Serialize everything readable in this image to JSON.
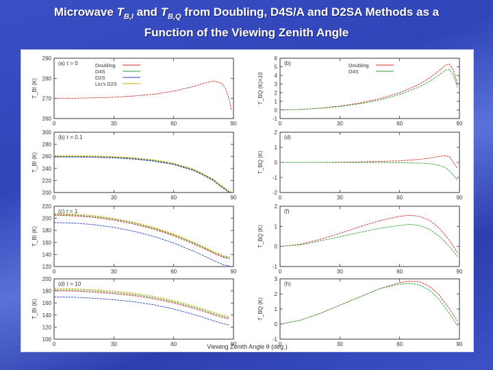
{
  "title": {
    "prefix": "Microwave ",
    "t1": "T",
    "sub1": "B,I",
    "mid": " and ",
    "t2": "T",
    "sub2": "B,Q",
    "suffix": " from Doubling, D4S/A and D2SA Methods as a",
    "line2": "Function of the Viewing Zenith Angle"
  },
  "colors": {
    "Doubling": "#d62728",
    "D4S": "#2ca02c",
    "D2S": "#1f3fbf",
    "Liu's D2S": "#e0a000"
  },
  "xlabel": "Viewing Zenith Angle θ (deg.)",
  "chart_data": [
    {
      "type": "line",
      "panel": "a",
      "panel_label": "(a) τ = 0",
      "ylabel": "T_BI (K)",
      "xlim": [
        0,
        90
      ],
      "ylim": [
        260,
        290
      ],
      "xticks": [
        0,
        30,
        60,
        90
      ],
      "yticks": [
        260,
        270,
        280,
        290
      ],
      "x": [
        0,
        10,
        20,
        30,
        40,
        50,
        60,
        70,
        75,
        80,
        84,
        86,
        88,
        89
      ],
      "legend": [
        "Doubling",
        "D4S",
        "D2S",
        "Liu's D2S"
      ],
      "series": [
        {
          "name": "Doubling",
          "values": [
            270.0,
            270.1,
            270.3,
            270.6,
            271.2,
            272.1,
            273.6,
            276.0,
            277.5,
            278.6,
            277.6,
            275.0,
            269.0,
            264.0
          ]
        }
      ]
    },
    {
      "type": "line",
      "panel": "b",
      "panel_label": "(b)",
      "ylabel": "T_BQ (K)×10",
      "xlim": [
        0,
        90
      ],
      "ylim": [
        -1,
        6
      ],
      "xticks": [
        0,
        30,
        60,
        90
      ],
      "yticks": [
        -1,
        0,
        1,
        2,
        3,
        4,
        5,
        6
      ],
      "x": [
        0,
        10,
        20,
        30,
        40,
        50,
        60,
        70,
        75,
        80,
        83,
        85,
        87,
        89
      ],
      "legend": [
        "Doubling",
        "D4S"
      ],
      "series": [
        {
          "name": "Doubling",
          "values": [
            0.0,
            0.05,
            0.2,
            0.45,
            0.8,
            1.3,
            2.0,
            3.0,
            3.7,
            4.6,
            5.2,
            5.3,
            4.6,
            3.0
          ]
        },
        {
          "name": "D4S",
          "values": [
            0.0,
            0.05,
            0.18,
            0.4,
            0.72,
            1.15,
            1.8,
            2.7,
            3.3,
            4.1,
            4.6,
            4.7,
            4.0,
            2.6
          ]
        }
      ]
    },
    {
      "type": "line",
      "panel": "c",
      "panel_label": "(b) τ = 0.1",
      "ylabel": "T_BI (K)",
      "xlim": [
        0,
        90
      ],
      "ylim": [
        200,
        300
      ],
      "xticks": [
        0,
        30,
        60,
        90
      ],
      "yticks": [
        200,
        220,
        240,
        260,
        280,
        300
      ],
      "x": [
        0,
        10,
        20,
        30,
        40,
        50,
        60,
        70,
        75,
        80,
        83,
        86,
        88,
        90
      ],
      "series": [
        {
          "name": "Doubling",
          "values": [
            259.5,
            259.4,
            259.0,
            258.0,
            256.0,
            252.5,
            247.0,
            237.0,
            229.0,
            220.0,
            212.0,
            205.0,
            200.0,
            196.0
          ]
        },
        {
          "name": "D4S",
          "values": [
            260.0,
            259.9,
            259.5,
            258.6,
            256.7,
            253.2,
            247.8,
            237.8,
            229.8,
            220.8,
            212.8,
            205.8,
            200.8,
            196.8
          ]
        },
        {
          "name": "D2S",
          "values": [
            259.0,
            258.9,
            258.5,
            257.5,
            255.5,
            252.0,
            246.5,
            236.5,
            228.5,
            219.5,
            211.5,
            204.5,
            199.5,
            195.5
          ]
        },
        {
          "name": "Liu's D2S",
          "values": [
            261.0,
            260.9,
            260.5,
            259.6,
            257.7,
            254.2,
            248.8,
            238.8,
            230.8,
            221.8,
            213.8,
            206.8,
            201.8,
            197.8
          ]
        }
      ]
    },
    {
      "type": "line",
      "panel": "d",
      "panel_label": "(d)",
      "ylabel": "T_BQ (K)",
      "xlim": [
        0,
        90
      ],
      "ylim": [
        -2,
        2
      ],
      "xticks": [
        0,
        30,
        60,
        90
      ],
      "yticks": [
        -2,
        -1,
        0,
        1,
        2
      ],
      "x": [
        0,
        20,
        40,
        60,
        70,
        76,
        80,
        83,
        85,
        87,
        89
      ],
      "series": [
        {
          "name": "Doubling",
          "values": [
            0.0,
            0.0,
            0.03,
            0.1,
            0.2,
            0.3,
            0.4,
            0.45,
            0.35,
            0.0,
            -0.4
          ]
        },
        {
          "name": "D4S",
          "values": [
            0.0,
            0.0,
            0.0,
            -0.02,
            -0.05,
            -0.1,
            -0.2,
            -0.35,
            -0.55,
            -0.85,
            -1.2
          ]
        }
      ]
    },
    {
      "type": "line",
      "panel": "e",
      "panel_label": "(c) τ = 1",
      "ylabel": "T_BI (K)",
      "xlim": [
        0,
        90
      ],
      "ylim": [
        120,
        220
      ],
      "xticks": [
        0,
        30,
        60,
        90
      ],
      "yticks": [
        120,
        140,
        160,
        180,
        200,
        220
      ],
      "x": [
        0,
        10,
        20,
        30,
        40,
        50,
        60,
        70,
        75,
        80,
        85,
        88
      ],
      "series": [
        {
          "name": "Doubling",
          "values": [
            205.0,
            204.0,
            201.5,
            197.0,
            190.5,
            182.0,
            171.0,
            157.5,
            150.0,
            142.0,
            135.0,
            133.0
          ]
        },
        {
          "name": "D4S",
          "values": [
            206.5,
            205.5,
            203.0,
            198.5,
            192.0,
            183.5,
            172.5,
            159.0,
            151.5,
            143.5,
            136.5,
            134.5
          ]
        },
        {
          "name": "D2S",
          "values": [
            193.0,
            192.0,
            189.5,
            185.0,
            178.5,
            170.0,
            159.0,
            145.5,
            138.0,
            130.0,
            123.0,
            121.0
          ]
        },
        {
          "name": "Liu's D2S",
          "values": [
            208.0,
            207.0,
            204.5,
            200.0,
            193.5,
            185.0,
            174.0,
            160.5,
            153.0,
            145.0,
            138.0,
            136.0
          ]
        }
      ]
    },
    {
      "type": "line",
      "panel": "f",
      "panel_label": "(f)",
      "ylabel": "T_BQ (K)",
      "xlim": [
        0,
        90
      ],
      "ylim": [
        -1,
        2
      ],
      "xticks": [
        0,
        30,
        60,
        90
      ],
      "yticks": [
        -1,
        0,
        1,
        2
      ],
      "x": [
        0,
        10,
        20,
        30,
        40,
        50,
        60,
        65,
        70,
        75,
        80,
        85,
        89
      ],
      "series": [
        {
          "name": "Doubling",
          "values": [
            0.0,
            0.1,
            0.35,
            0.65,
            0.98,
            1.28,
            1.5,
            1.55,
            1.5,
            1.3,
            0.9,
            0.3,
            -0.3
          ]
        },
        {
          "name": "D4S",
          "values": [
            0.0,
            0.08,
            0.27,
            0.48,
            0.7,
            0.9,
            1.05,
            1.1,
            1.05,
            0.85,
            0.5,
            0.0,
            -0.5
          ]
        }
      ]
    },
    {
      "type": "line",
      "panel": "g",
      "panel_label": "(d) τ = 10",
      "ylabel": "T_BI (K)",
      "xlim": [
        0,
        90
      ],
      "ylim": [
        100,
        200
      ],
      "xticks": [
        0,
        30,
        60,
        90
      ],
      "yticks": [
        100,
        120,
        140,
        160,
        180,
        200
      ],
      "x": [
        0,
        10,
        20,
        30,
        40,
        50,
        60,
        70,
        75,
        80,
        85,
        88
      ],
      "series": [
        {
          "name": "Doubling",
          "values": [
            180.0,
            179.5,
            178.0,
            175.5,
            172.0,
            167.0,
            160.0,
            151.0,
            146.0,
            140.5,
            135.5,
            133.5
          ]
        },
        {
          "name": "D4S",
          "values": [
            182.0,
            181.5,
            180.0,
            177.5,
            174.0,
            169.0,
            162.0,
            153.0,
            148.0,
            142.5,
            137.5,
            135.5
          ]
        },
        {
          "name": "D2S",
          "values": [
            170.0,
            169.5,
            168.0,
            165.5,
            162.0,
            157.0,
            150.0,
            141.0,
            136.0,
            130.5,
            125.5,
            123.5
          ]
        },
        {
          "name": "Liu's D2S",
          "values": [
            184.0,
            183.5,
            182.0,
            179.5,
            176.0,
            171.0,
            164.0,
            155.0,
            150.0,
            144.5,
            139.5,
            137.5
          ]
        }
      ]
    },
    {
      "type": "line",
      "panel": "h",
      "panel_label": "(h)",
      "ylabel": "T_BQ (K)",
      "xlim": [
        0,
        90
      ],
      "ylim": [
        -1,
        3
      ],
      "xticks": [
        0,
        30,
        60,
        90
      ],
      "yticks": [
        -1,
        0,
        1,
        2,
        3
      ],
      "x": [
        0,
        10,
        20,
        30,
        40,
        50,
        60,
        65,
        70,
        75,
        80,
        85,
        89
      ],
      "series": [
        {
          "name": "Doubling",
          "values": [
            0.0,
            0.25,
            0.7,
            1.25,
            1.8,
            2.35,
            2.75,
            2.85,
            2.8,
            2.5,
            1.9,
            1.0,
            0.2
          ]
        },
        {
          "name": "D4S",
          "values": [
            0.0,
            0.25,
            0.7,
            1.25,
            1.8,
            2.35,
            2.65,
            2.7,
            2.6,
            2.25,
            1.6,
            0.7,
            -0.1
          ]
        }
      ]
    }
  ]
}
